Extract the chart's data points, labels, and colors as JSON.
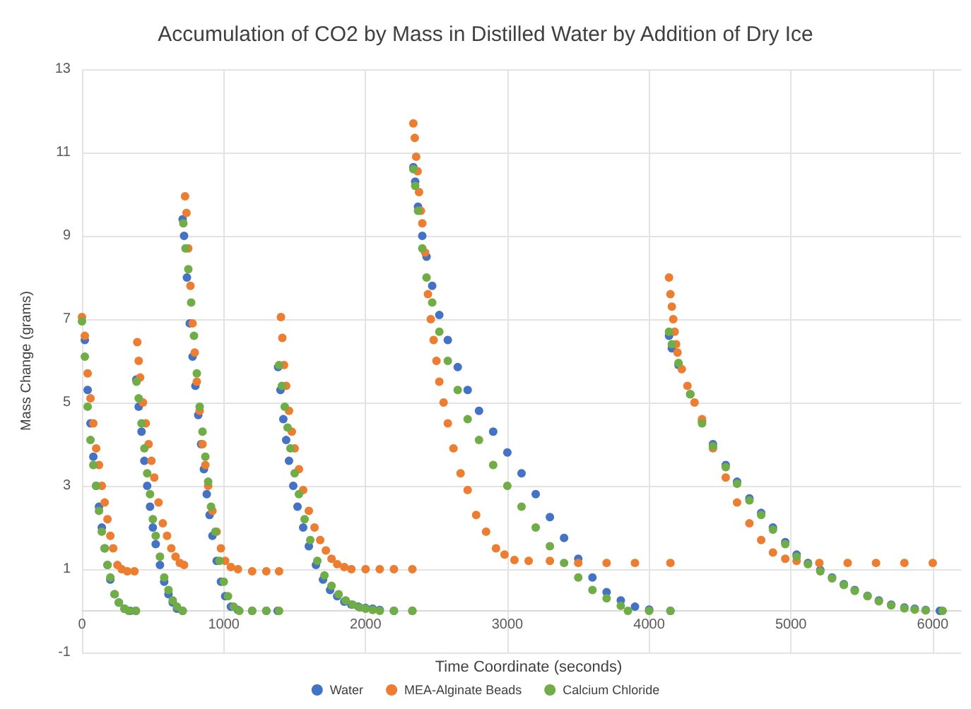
{
  "chart_data": {
    "type": "scatter",
    "title": "Accumulation of CO2 by Mass in Distilled Water by Addition of Dry Ice",
    "xlabel": "Time Coordinate (seconds)",
    "ylabel": "Mass Change (grams)",
    "xlim": [
      0,
      6200
    ],
    "xticks": [
      0,
      1000,
      2000,
      3000,
      4000,
      5000,
      6000
    ],
    "ylim": [
      -1,
      13
    ],
    "yticks": [
      -1,
      1,
      3,
      5,
      7,
      9,
      11,
      13
    ],
    "grid": true,
    "legend": "bottom",
    "marker": "circle",
    "series": [
      {
        "name": "Water",
        "color": "#4472c4",
        "x": [
          20,
          40,
          60,
          80,
          100,
          120,
          140,
          160,
          180,
          200,
          230,
          260,
          300,
          340,
          380,
          383,
          400,
          420,
          440,
          460,
          480,
          500,
          520,
          550,
          580,
          610,
          640,
          670,
          710,
          710,
          720,
          740,
          760,
          780,
          800,
          820,
          840,
          860,
          880,
          900,
          920,
          950,
          980,
          1010,
          1050,
          1100,
          1200,
          1300,
          1380,
          1383,
          1400,
          1420,
          1440,
          1460,
          1490,
          1520,
          1560,
          1600,
          1650,
          1700,
          1750,
          1800,
          1850,
          1900,
          1950,
          2000,
          2050,
          2100,
          2200,
          2330,
          2337,
          2350,
          2370,
          2400,
          2430,
          2470,
          2520,
          2580,
          2650,
          2720,
          2800,
          2900,
          3000,
          3100,
          3200,
          3300,
          3400,
          3500,
          3600,
          3700,
          3800,
          3900,
          4000,
          4150,
          4140,
          4160,
          4207,
          4290,
          4373,
          4450,
          4540,
          4620,
          4707,
          4790,
          4873,
          4960,
          5040,
          5120,
          5207,
          5290,
          5373,
          5450,
          5540,
          5620,
          5707,
          5800,
          5873,
          5950,
          6050
        ],
        "values": [
          6.5,
          5.3,
          4.5,
          3.7,
          3.0,
          2.5,
          2.0,
          1.5,
          1.1,
          0.75,
          0.4,
          0.2,
          0.05,
          0,
          0,
          5.55,
          4.9,
          4.3,
          3.6,
          3.0,
          2.5,
          2.0,
          1.6,
          1.1,
          0.7,
          0.4,
          0.2,
          0.05,
          0,
          9.4,
          9.0,
          8.0,
          6.9,
          6.1,
          5.4,
          4.7,
          4.0,
          3.4,
          2.8,
          2.3,
          1.8,
          1.2,
          0.7,
          0.35,
          0.1,
          0.02,
          0,
          0,
          0,
          5.85,
          5.3,
          4.6,
          4.1,
          3.6,
          3.0,
          2.5,
          2.0,
          1.55,
          1.1,
          0.75,
          0.5,
          0.35,
          0.22,
          0.15,
          0.1,
          0.07,
          0.05,
          0.02,
          0,
          0,
          10.65,
          10.3,
          9.7,
          9.0,
          8.5,
          7.8,
          7.1,
          6.5,
          5.85,
          5.3,
          4.8,
          4.3,
          3.8,
          3.3,
          2.8,
          2.25,
          1.75,
          1.25,
          0.8,
          0.45,
          0.25,
          0.1,
          0.03,
          0,
          6.6,
          6.3,
          5.9,
          5.2,
          4.55,
          4.0,
          3.5,
          3.1,
          2.7,
          2.35,
          2.0,
          1.65,
          1.35,
          1.15,
          0.98,
          0.8,
          0.64,
          0.5,
          0.36,
          0.25,
          0.15,
          0.08,
          0.05,
          0.02,
          0
        ]
      },
      {
        "name": "MEA-Alginate Beads",
        "color": "#ed7d31",
        "x": [
          0,
          20,
          40,
          60,
          80,
          100,
          120,
          140,
          160,
          180,
          200,
          220,
          250,
          280,
          320,
          370,
          390,
          400,
          410,
          430,
          450,
          470,
          490,
          510,
          540,
          570,
          600,
          630,
          660,
          690,
          720,
          727,
          737,
          750,
          765,
          780,
          795,
          810,
          830,
          850,
          870,
          890,
          920,
          950,
          980,
          1010,
          1050,
          1100,
          1200,
          1300,
          1390,
          1403,
          1413,
          1425,
          1440,
          1460,
          1480,
          1500,
          1530,
          1560,
          1600,
          1640,
          1680,
          1720,
          1760,
          1800,
          1850,
          1900,
          2000,
          2100,
          2200,
          2330,
          2337,
          2347,
          2357,
          2367,
          2377,
          2390,
          2400,
          2420,
          2440,
          2460,
          2480,
          2500,
          2520,
          2550,
          2580,
          2620,
          2670,
          2720,
          2780,
          2850,
          2920,
          2980,
          3050,
          3150,
          3300,
          3500,
          3700,
          3900,
          4150,
          4140,
          4150,
          4160,
          4170,
          4180,
          4190,
          4200,
          4230,
          4270,
          4320,
          4373,
          4450,
          4540,
          4620,
          4707,
          4790,
          4873,
          4960,
          5040,
          5200,
          5400,
          5600,
          5800,
          6000
        ],
        "values": [
          7.05,
          6.6,
          5.7,
          5.1,
          4.5,
          3.9,
          3.5,
          3.0,
          2.6,
          2.2,
          1.8,
          1.5,
          1.1,
          1.0,
          0.95,
          0.95,
          6.45,
          6.0,
          5.6,
          5.0,
          4.5,
          4.0,
          3.6,
          3.2,
          2.6,
          2.1,
          1.8,
          1.5,
          1.3,
          1.15,
          1.1,
          9.95,
          9.55,
          8.7,
          7.8,
          6.9,
          6.2,
          5.5,
          4.8,
          4.0,
          3.5,
          3.0,
          2.4,
          1.9,
          1.5,
          1.2,
          1.05,
          1.0,
          0.95,
          0.95,
          0.95,
          7.05,
          6.55,
          5.9,
          5.4,
          4.8,
          4.3,
          3.9,
          3.4,
          2.9,
          2.4,
          2.0,
          1.7,
          1.45,
          1.25,
          1.12,
          1.05,
          1.0,
          1.0,
          1.0,
          1.0,
          1.0,
          11.7,
          11.35,
          10.9,
          10.55,
          10.05,
          9.6,
          9.3,
          8.6,
          7.6,
          7.0,
          6.5,
          6.0,
          5.5,
          5.0,
          4.5,
          3.9,
          3.3,
          2.9,
          2.3,
          1.9,
          1.5,
          1.35,
          1.22,
          1.2,
          1.2,
          1.15,
          1.15,
          1.15,
          1.15,
          8.0,
          7.6,
          7.3,
          7.0,
          6.7,
          6.4,
          6.2,
          5.8,
          5.4,
          5.0,
          4.6,
          3.9,
          3.2,
          2.6,
          2.1,
          1.7,
          1.4,
          1.25,
          1.2,
          1.15,
          1.15,
          1.15,
          1.15,
          1.15
        ]
      },
      {
        "name": "Calcium Chloride",
        "color": "#70ad47",
        "x": [
          0,
          20,
          40,
          60,
          80,
          100,
          120,
          140,
          160,
          180,
          200,
          230,
          260,
          300,
          330,
          380,
          385,
          400,
          420,
          440,
          460,
          480,
          500,
          520,
          550,
          580,
          610,
          640,
          670,
          710,
          715,
          730,
          750,
          770,
          790,
          810,
          830,
          850,
          870,
          890,
          910,
          940,
          970,
          1000,
          1030,
          1070,
          1110,
          1200,
          1300,
          1390,
          1390,
          1410,
          1430,
          1450,
          1470,
          1500,
          1530,
          1570,
          1610,
          1660,
          1710,
          1760,
          1810,
          1860,
          1910,
          1960,
          2000,
          2050,
          2100,
          2200,
          2330,
          2337,
          2350,
          2370,
          2400,
          2430,
          2470,
          2520,
          2580,
          2650,
          2720,
          2800,
          2900,
          3000,
          3100,
          3200,
          3300,
          3400,
          3500,
          3600,
          3700,
          3800,
          3850,
          4000,
          4150,
          4140,
          4160,
          4207,
          4290,
          4373,
          4450,
          4540,
          4620,
          4707,
          4790,
          4873,
          4960,
          5040,
          5120,
          5207,
          5290,
          5373,
          5450,
          5540,
          5620,
          5707,
          5800,
          5873,
          5950,
          6070
        ],
        "values": [
          6.95,
          6.1,
          4.9,
          4.1,
          3.5,
          3.0,
          2.4,
          1.9,
          1.5,
          1.1,
          0.8,
          0.4,
          0.2,
          0.05,
          0,
          0,
          5.5,
          5.1,
          4.5,
          3.9,
          3.3,
          2.8,
          2.2,
          1.8,
          1.3,
          0.8,
          0.5,
          0.25,
          0.1,
          0,
          9.3,
          8.7,
          8.2,
          7.4,
          6.6,
          5.7,
          4.9,
          4.3,
          3.7,
          3.1,
          2.5,
          1.9,
          1.2,
          0.7,
          0.35,
          0.1,
          0,
          0,
          0,
          0,
          5.9,
          5.4,
          4.9,
          4.4,
          3.9,
          3.3,
          2.8,
          2.2,
          1.7,
          1.2,
          0.85,
          0.6,
          0.4,
          0.25,
          0.15,
          0.08,
          0.05,
          0.02,
          0,
          0,
          0,
          10.6,
          10.2,
          9.6,
          8.7,
          8.0,
          7.4,
          6.7,
          6.0,
          5.3,
          4.6,
          4.1,
          3.5,
          3.0,
          2.5,
          2.0,
          1.55,
          1.15,
          0.8,
          0.5,
          0.3,
          0.12,
          0,
          0,
          0,
          6.7,
          6.4,
          5.95,
          5.2,
          4.5,
          3.95,
          3.45,
          3.05,
          2.65,
          2.3,
          1.95,
          1.6,
          1.3,
          1.12,
          0.95,
          0.78,
          0.62,
          0.48,
          0.35,
          0.23,
          0.13,
          0.06,
          0.03,
          0.01,
          0
        ]
      }
    ]
  }
}
